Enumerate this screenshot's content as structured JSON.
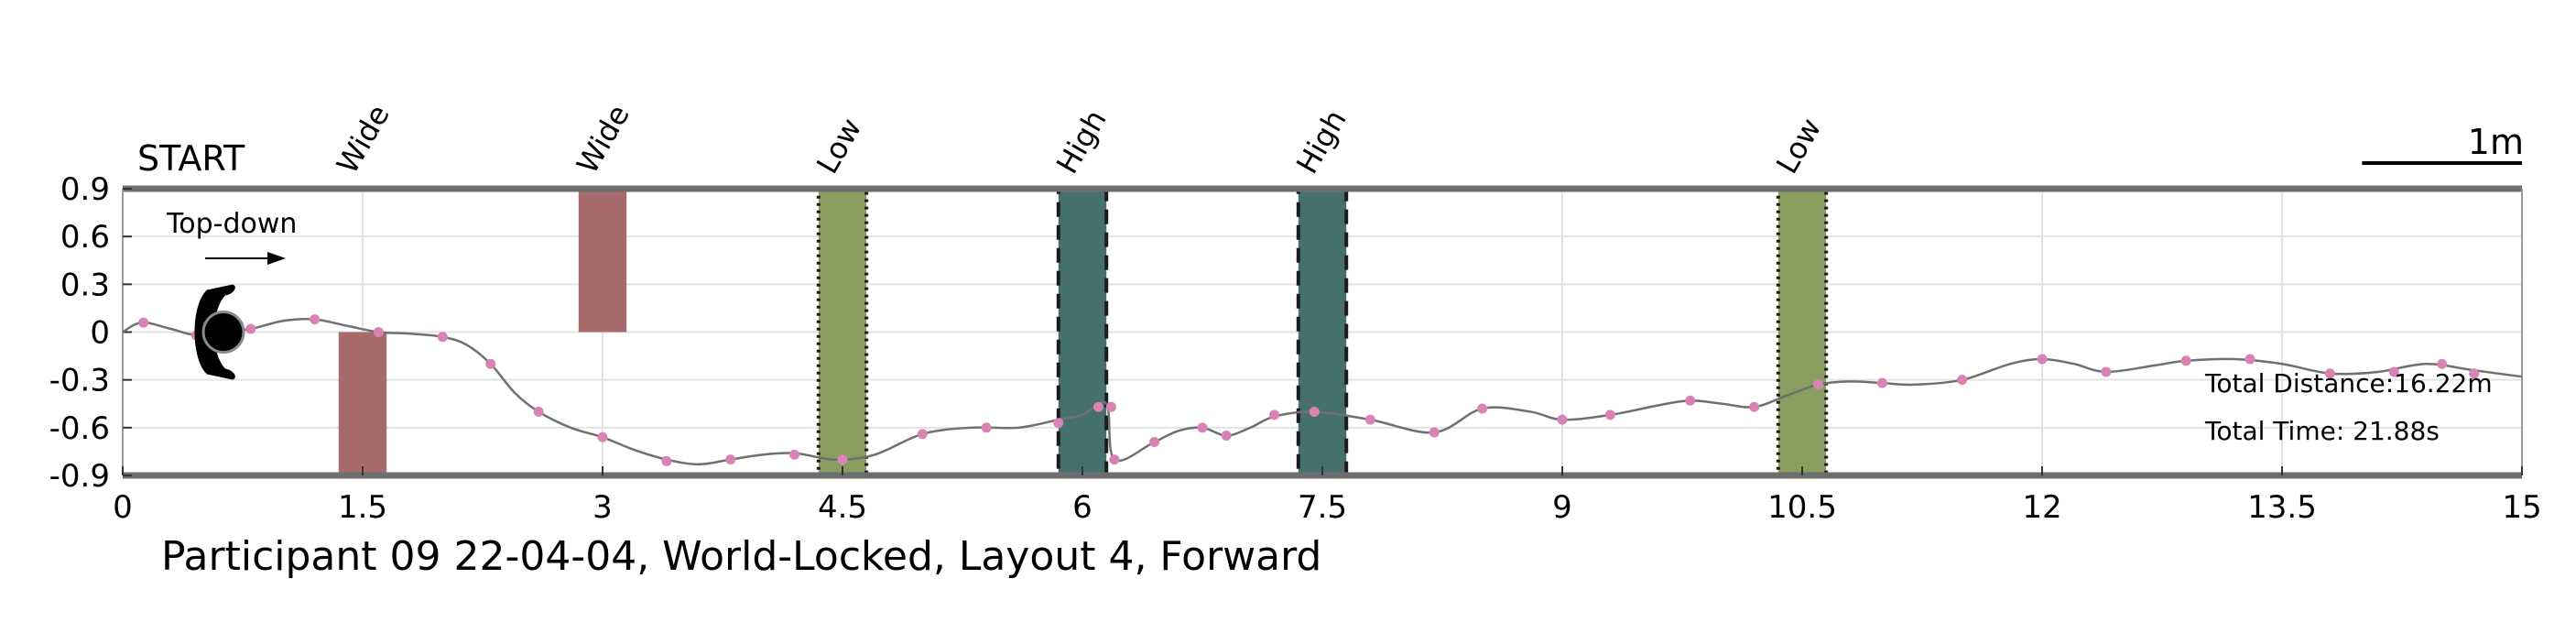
{
  "chart_data": {
    "type": "line",
    "title": "Participant 09 22-04-04, World-Locked, Layout 4, Forward",
    "start_label": "START",
    "view_label": "Top-down",
    "scale_label": "1m",
    "stats": {
      "distance": "Total Distance:16.22m",
      "time": "Total Time: 21.88s"
    },
    "xlim": [
      0,
      15
    ],
    "ylim": [
      -0.9,
      0.9
    ],
    "x_ticks": [
      {
        "v": 0,
        "label": "0"
      },
      {
        "v": 1.5,
        "label": "1.5"
      },
      {
        "v": 3,
        "label": "3"
      },
      {
        "v": 4.5,
        "label": "4.5"
      },
      {
        "v": 6,
        "label": "6"
      },
      {
        "v": 7.5,
        "label": "7.5"
      },
      {
        "v": 9,
        "label": "9"
      },
      {
        "v": 10.5,
        "label": "10.5"
      },
      {
        "v": 12,
        "label": "12"
      },
      {
        "v": 13.5,
        "label": "13.5"
      },
      {
        "v": 15,
        "label": "15"
      }
    ],
    "y_ticks": [
      {
        "v": 0.9,
        "label": "0.9"
      },
      {
        "v": 0.6,
        "label": "0.6"
      },
      {
        "v": 0.3,
        "label": "0.3"
      },
      {
        "v": 0,
        "label": "0"
      },
      {
        "v": -0.3,
        "label": "-0.3"
      },
      {
        "v": -0.6,
        "label": "-0.6"
      },
      {
        "v": -0.9,
        "label": "-0.9"
      }
    ],
    "grid": true,
    "obstacles": [
      {
        "label": "Wide",
        "x0": 1.35,
        "x1": 1.65,
        "y0": -0.9,
        "y1": 0.0,
        "color": "#a86b6b",
        "border": "none"
      },
      {
        "label": "Wide",
        "x0": 2.85,
        "x1": 3.15,
        "y0": 0.0,
        "y1": 0.9,
        "color": "#a86b6b",
        "border": "none"
      },
      {
        "label": "Low",
        "x0": 4.35,
        "x1": 4.65,
        "y0": -0.9,
        "y1": 0.9,
        "color": "#8a9e62",
        "border": "dotted"
      },
      {
        "label": "High",
        "x0": 5.85,
        "x1": 6.15,
        "y0": -0.9,
        "y1": 0.9,
        "color": "#46706e",
        "border": "dashed"
      },
      {
        "label": "High",
        "x0": 7.35,
        "x1": 7.65,
        "y0": -0.9,
        "y1": 0.9,
        "color": "#46706e",
        "border": "dashed"
      },
      {
        "label": "Low",
        "x0": 10.35,
        "x1": 10.65,
        "y0": -0.9,
        "y1": 0.9,
        "color": "#8a9e62",
        "border": "dotted"
      }
    ],
    "path": [
      [
        0.0,
        0.0
      ],
      [
        0.12,
        0.06
      ],
      [
        0.3,
        0.02
      ],
      [
        0.46,
        -0.02
      ],
      [
        0.6,
        0.0
      ],
      [
        0.8,
        0.02
      ],
      [
        1.0,
        0.07
      ],
      [
        1.2,
        0.08
      ],
      [
        1.4,
        0.04
      ],
      [
        1.6,
        0.0
      ],
      [
        1.8,
        -0.01
      ],
      [
        2.0,
        -0.03
      ],
      [
        2.15,
        -0.08
      ],
      [
        2.3,
        -0.2
      ],
      [
        2.45,
        -0.38
      ],
      [
        2.6,
        -0.5
      ],
      [
        2.8,
        -0.6
      ],
      [
        3.0,
        -0.66
      ],
      [
        3.2,
        -0.74
      ],
      [
        3.4,
        -0.8
      ],
      [
        3.6,
        -0.83
      ],
      [
        3.8,
        -0.8
      ],
      [
        4.0,
        -0.77
      ],
      [
        4.2,
        -0.76
      ],
      [
        4.45,
        -0.8
      ],
      [
        4.7,
        -0.77
      ],
      [
        5.0,
        -0.64
      ],
      [
        5.3,
        -0.6
      ],
      [
        5.6,
        -0.6
      ],
      [
        5.85,
        -0.55
      ],
      [
        6.0,
        -0.52
      ],
      [
        6.15,
        -0.45
      ],
      [
        6.2,
        -0.8
      ],
      [
        6.45,
        -0.69
      ],
      [
        6.6,
        -0.62
      ],
      [
        6.75,
        -0.6
      ],
      [
        6.9,
        -0.65
      ],
      [
        7.05,
        -0.6
      ],
      [
        7.2,
        -0.53
      ],
      [
        7.45,
        -0.5
      ],
      [
        7.8,
        -0.55
      ],
      [
        8.2,
        -0.63
      ],
      [
        8.5,
        -0.48
      ],
      [
        8.8,
        -0.5
      ],
      [
        9.0,
        -0.55
      ],
      [
        9.3,
        -0.52
      ],
      [
        9.6,
        -0.46
      ],
      [
        9.8,
        -0.43
      ],
      [
        10.0,
        -0.45
      ],
      [
        10.2,
        -0.47
      ],
      [
        10.4,
        -0.4
      ],
      [
        10.6,
        -0.33
      ],
      [
        10.8,
        -0.31
      ],
      [
        11.0,
        -0.32
      ],
      [
        11.2,
        -0.33
      ],
      [
        11.5,
        -0.3
      ],
      [
        11.8,
        -0.2
      ],
      [
        12.0,
        -0.17
      ],
      [
        12.2,
        -0.2
      ],
      [
        12.4,
        -0.25
      ],
      [
        12.7,
        -0.21
      ],
      [
        12.9,
        -0.18
      ],
      [
        13.2,
        -0.17
      ],
      [
        13.5,
        -0.2
      ],
      [
        13.8,
        -0.26
      ],
      [
        14.1,
        -0.25
      ],
      [
        14.4,
        -0.2
      ],
      [
        14.7,
        -0.24
      ],
      [
        15.0,
        -0.28
      ]
    ],
    "markers": [
      [
        0.13,
        0.06
      ],
      [
        0.46,
        -0.02
      ],
      [
        0.8,
        0.02
      ],
      [
        1.2,
        0.08
      ],
      [
        1.6,
        0.0
      ],
      [
        2.0,
        -0.03
      ],
      [
        2.3,
        -0.2
      ],
      [
        2.6,
        -0.5
      ],
      [
        3.0,
        -0.66
      ],
      [
        3.4,
        -0.81
      ],
      [
        3.8,
        -0.8
      ],
      [
        4.2,
        -0.77
      ],
      [
        4.5,
        -0.8
      ],
      [
        5.0,
        -0.64
      ],
      [
        5.4,
        -0.6
      ],
      [
        5.85,
        -0.57
      ],
      [
        6.1,
        -0.47
      ],
      [
        6.18,
        -0.47
      ],
      [
        6.2,
        -0.8
      ],
      [
        6.45,
        -0.69
      ],
      [
        6.75,
        -0.6
      ],
      [
        6.9,
        -0.65
      ],
      [
        7.2,
        -0.52
      ],
      [
        7.45,
        -0.5
      ],
      [
        7.8,
        -0.55
      ],
      [
        8.2,
        -0.63
      ],
      [
        8.5,
        -0.48
      ],
      [
        9.0,
        -0.55
      ],
      [
        9.3,
        -0.52
      ],
      [
        9.8,
        -0.43
      ],
      [
        10.2,
        -0.47
      ],
      [
        10.6,
        -0.33
      ],
      [
        11.0,
        -0.32
      ],
      [
        11.5,
        -0.3
      ],
      [
        12.0,
        -0.17
      ],
      [
        12.4,
        -0.25
      ],
      [
        12.9,
        -0.18
      ],
      [
        13.3,
        -0.17
      ],
      [
        13.8,
        -0.26
      ],
      [
        14.2,
        -0.25
      ],
      [
        14.5,
        -0.2
      ],
      [
        14.7,
        -0.26
      ]
    ],
    "colors": {
      "path": "#707070",
      "marker": "#d983b4",
      "axis": "#6e6e6e",
      "grid": "#e3e3e3",
      "walker": "#000000"
    },
    "walker": {
      "x": 0.63,
      "y": 0.0
    }
  }
}
